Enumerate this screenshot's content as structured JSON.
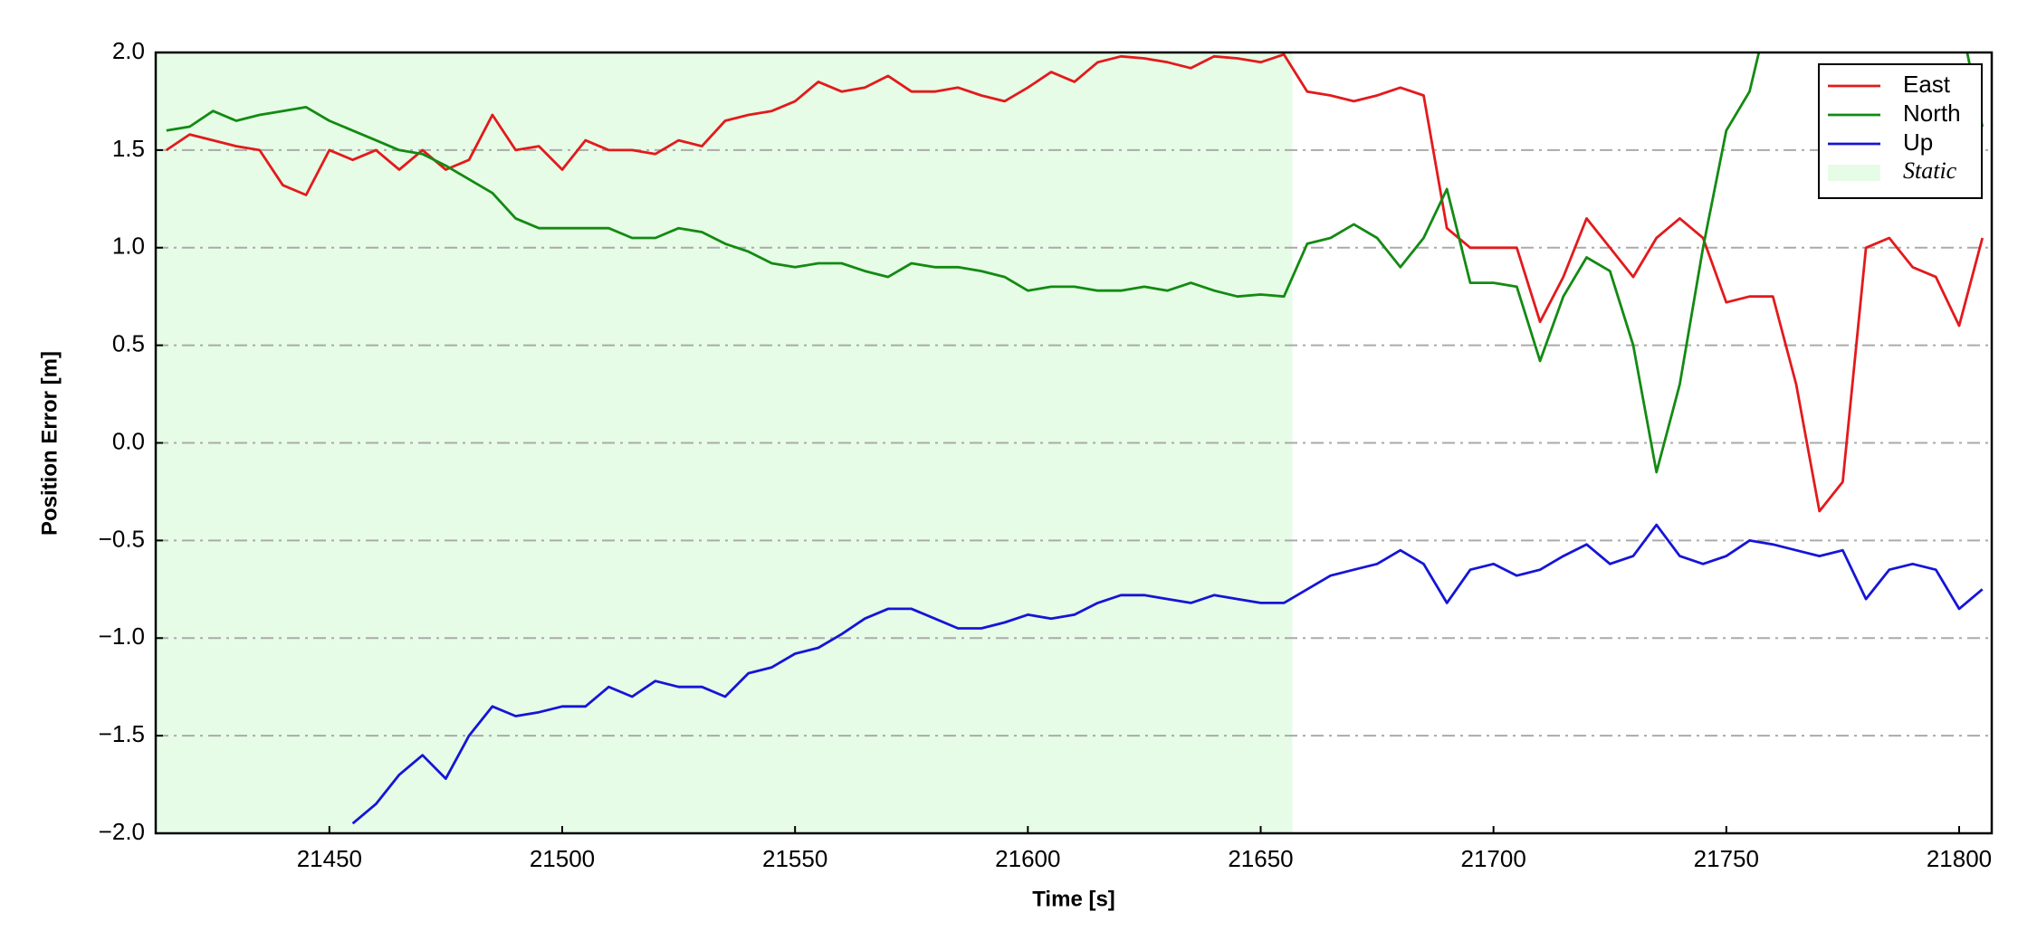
{
  "chart_data": {
    "type": "line",
    "x_label": "Time [s]",
    "y_label": "Position Error [m]",
    "x": [
      21415,
      21420,
      21425,
      21430,
      21435,
      21440,
      21445,
      21450,
      21455,
      21460,
      21465,
      21470,
      21475,
      21480,
      21485,
      21490,
      21495,
      21500,
      21505,
      21510,
      21515,
      21520,
      21525,
      21530,
      21535,
      21540,
      21545,
      21550,
      21555,
      21560,
      21565,
      21570,
      21575,
      21580,
      21585,
      21590,
      21595,
      21600,
      21605,
      21610,
      21615,
      21620,
      21625,
      21630,
      21635,
      21640,
      21645,
      21650,
      21655,
      21660,
      21665,
      21670,
      21675,
      21680,
      21685,
      21690,
      21695,
      21700,
      21705,
      21710,
      21715,
      21720,
      21725,
      21730,
      21735,
      21740,
      21745,
      21750,
      21755,
      21760,
      21765,
      21770,
      21775,
      21780,
      21785,
      21790,
      21795,
      21800,
      21805
    ],
    "series": [
      {
        "name": "East",
        "color": "#e31a1c",
        "values": [
          1.5,
          1.58,
          1.55,
          1.52,
          1.5,
          1.32,
          1.27,
          1.5,
          1.45,
          1.5,
          1.4,
          1.5,
          1.4,
          1.45,
          1.68,
          1.5,
          1.52,
          1.4,
          1.55,
          1.5,
          1.5,
          1.48,
          1.55,
          1.52,
          1.65,
          1.68,
          1.7,
          1.75,
          1.85,
          1.8,
          1.82,
          1.88,
          1.8,
          1.8,
          1.82,
          1.78,
          1.75,
          1.82,
          1.9,
          1.85,
          1.95,
          1.98,
          1.97,
          1.95,
          1.92,
          1.98,
          1.97,
          1.95,
          1.99,
          1.8,
          1.78,
          1.75,
          1.78,
          1.82,
          1.78,
          1.1,
          1.0,
          1.0,
          1.0,
          0.62,
          0.85,
          1.15,
          1.0,
          0.85,
          1.05,
          1.15,
          1.05,
          0.72,
          0.75,
          0.75,
          0.3,
          -0.35,
          -0.2,
          1.0,
          1.05,
          0.9,
          0.85,
          0.6,
          1.05
        ]
      },
      {
        "name": "North",
        "color": "#138a13",
        "values": [
          1.6,
          1.62,
          1.7,
          1.65,
          1.68,
          1.7,
          1.72,
          1.65,
          1.6,
          1.55,
          1.5,
          1.48,
          1.42,
          1.35,
          1.28,
          1.15,
          1.1,
          1.1,
          1.1,
          1.1,
          1.05,
          1.05,
          1.1,
          1.08,
          1.02,
          0.98,
          0.92,
          0.9,
          0.92,
          0.92,
          0.88,
          0.85,
          0.92,
          0.9,
          0.9,
          0.88,
          0.85,
          0.78,
          0.8,
          0.8,
          0.78,
          0.78,
          0.8,
          0.78,
          0.82,
          0.78,
          0.75,
          0.76,
          0.75,
          1.02,
          1.05,
          1.12,
          1.05,
          0.9,
          1.05,
          1.3,
          0.82,
          0.82,
          0.8,
          0.42,
          0.75,
          0.95,
          0.88,
          0.5,
          -0.15,
          0.3,
          1.0,
          1.6,
          1.8,
          2.3,
          null,
          null,
          null,
          null,
          null,
          null,
          null,
          2.2,
          1.62
        ]
      },
      {
        "name": "Up",
        "color": "#1515d6",
        "values": [
          null,
          null,
          null,
          null,
          null,
          null,
          null,
          null,
          -1.95,
          -1.85,
          -1.7,
          -1.6,
          -1.72,
          -1.5,
          -1.35,
          -1.4,
          -1.38,
          -1.35,
          -1.35,
          -1.25,
          -1.3,
          -1.22,
          -1.25,
          -1.25,
          -1.3,
          -1.18,
          -1.15,
          -1.08,
          -1.05,
          -0.98,
          -0.9,
          -0.85,
          -0.85,
          -0.9,
          -0.95,
          -0.95,
          -0.92,
          -0.88,
          -0.9,
          -0.88,
          -0.82,
          -0.78,
          -0.78,
          -0.8,
          -0.82,
          -0.78,
          -0.8,
          -0.82,
          -0.82,
          -0.75,
          -0.68,
          -0.65,
          -0.62,
          -0.55,
          -0.62,
          -0.82,
          -0.65,
          -0.62,
          -0.68,
          -0.65,
          -0.58,
          -0.52,
          -0.62,
          -0.58,
          -0.42,
          -0.58,
          -0.62,
          -0.58,
          -0.5,
          -0.52,
          -0.55,
          -0.58,
          -0.55,
          -0.8,
          -0.65,
          -0.62,
          -0.65,
          -0.85,
          -0.75
        ]
      }
    ],
    "shaded_region": {
      "label": "Static",
      "xrange": [
        21412.7,
        21656.8
      ],
      "color": "#e6fce6"
    },
    "xlim": [
      21412.7,
      21807
    ],
    "ylim": [
      -2.0,
      2.0
    ],
    "xticks": [
      21450,
      21500,
      21550,
      21600,
      21650,
      21700,
      21750,
      21800
    ],
    "yticks": [
      {
        "value": -2.0,
        "label": "−2.0"
      },
      {
        "value": -1.5,
        "label": "−1.5"
      },
      {
        "value": -1.0,
        "label": "−1.0"
      },
      {
        "value": -0.5,
        "label": "−0.5"
      },
      {
        "value": 0.0,
        "label": "0.0"
      },
      {
        "value": 0.5,
        "label": "0.5"
      },
      {
        "value": 1.0,
        "label": "1.0"
      },
      {
        "value": 1.5,
        "label": "1.5"
      },
      {
        "value": 2.0,
        "label": "2.0"
      }
    ],
    "grid": true,
    "legend": "upper right"
  }
}
